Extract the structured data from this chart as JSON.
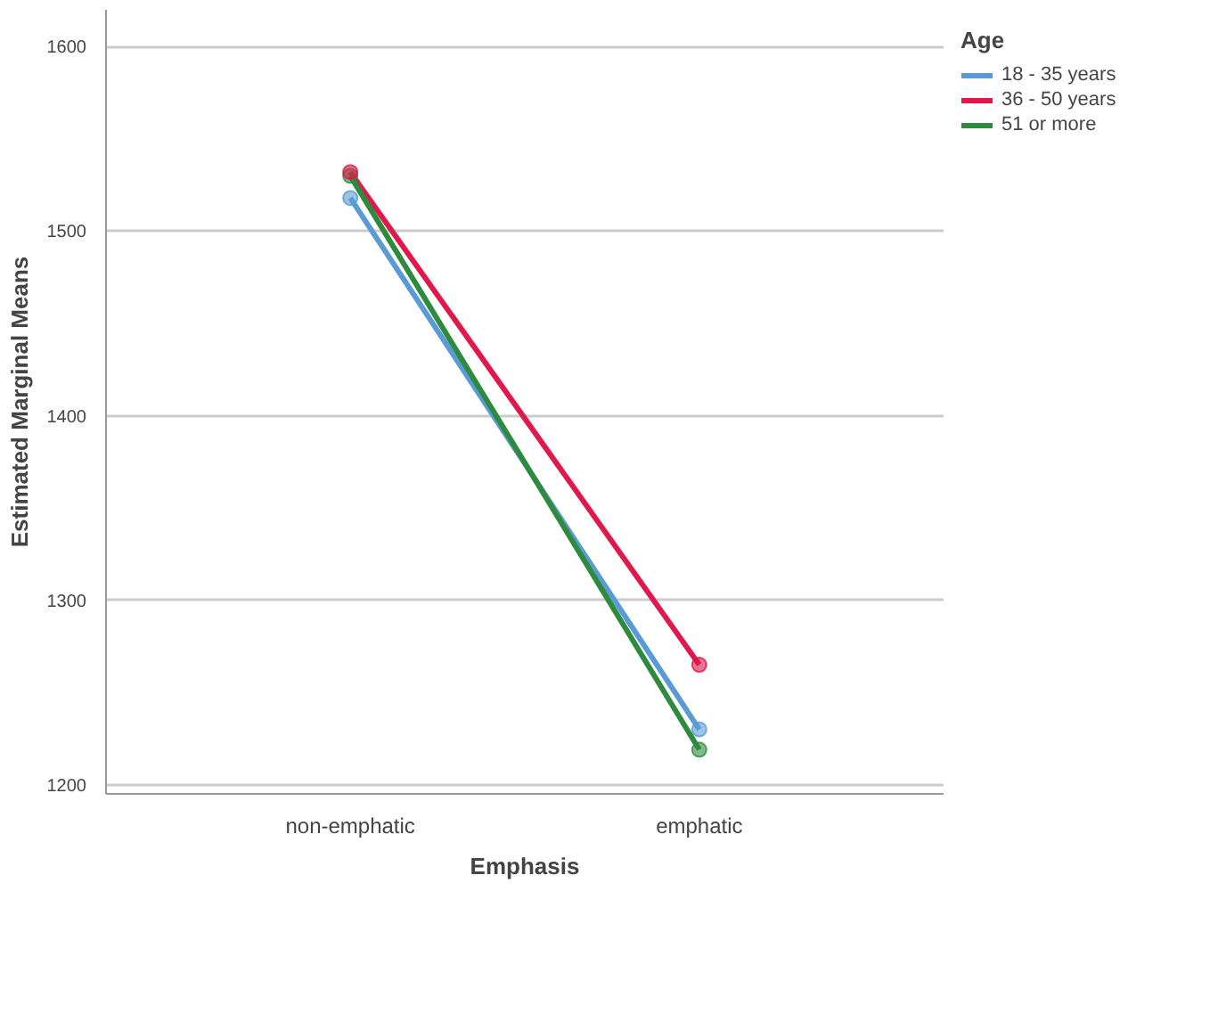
{
  "chart_data": {
    "type": "line",
    "xlabel": "Emphasis",
    "ylabel": "Estimated Marginal Means",
    "legend_title": "Age",
    "categories": [
      "non-emphatic",
      "emphatic"
    ],
    "series": [
      {
        "name": "18 - 35 years",
        "color": "#5b9bd5",
        "values": [
          1518,
          1230
        ]
      },
      {
        "name": "36 - 50 years",
        "color": "#e0184b",
        "values": [
          1532,
          1265
        ]
      },
      {
        "name": "51 or more",
        "color": "#2e8b3e",
        "values": [
          1530,
          1219
        ]
      }
    ],
    "ylim": [
      1195,
      1620
    ],
    "yticks": [
      1200,
      1300,
      1400,
      1500,
      1600
    ],
    "grid": "y",
    "legend": "top right",
    "marker": "circle"
  }
}
